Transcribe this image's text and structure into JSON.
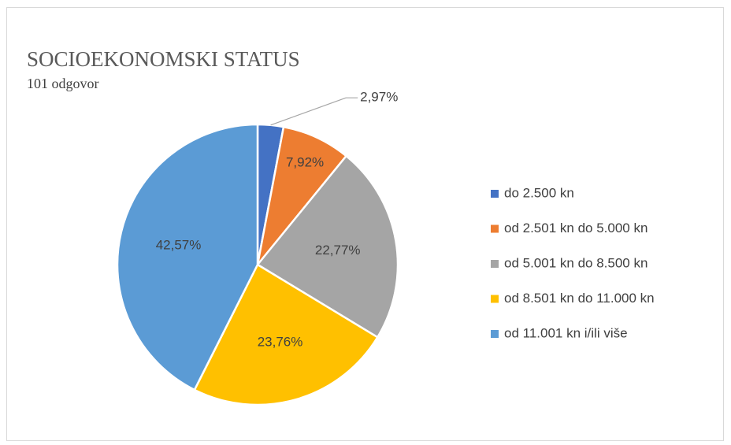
{
  "chart_data": {
    "type": "pie",
    "title": "SOCIOEKONOMSKI STATUS",
    "subtitle": "101 odgovor",
    "categories": [
      "do 2.500 kn",
      "od 2.501 kn do 5.000 kn",
      "od 5.001 kn do 8.500 kn",
      "od 8.501 kn do 11.000 kn",
      "od 11.001 kn i/ili više"
    ],
    "values": [
      2.97,
      7.92,
      22.77,
      23.76,
      42.57
    ],
    "value_labels": [
      "2,97%",
      "7,92%",
      "22,77%",
      "23,76%",
      "42,57%"
    ],
    "colors": [
      "#4472c4",
      "#ed7d31",
      "#a5a5a5",
      "#ffc000",
      "#5b9bd5"
    ],
    "legend": "right"
  }
}
